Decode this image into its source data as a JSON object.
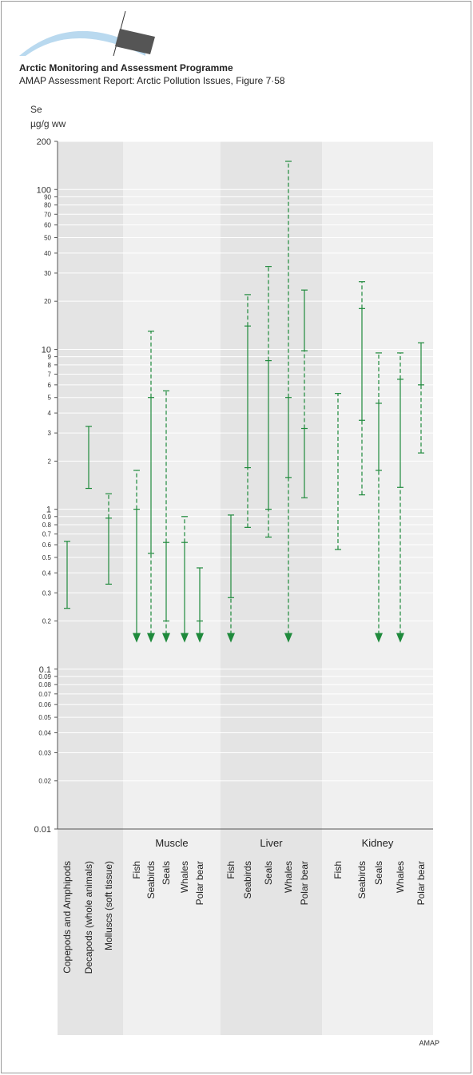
{
  "header": {
    "logo_text": "AMAP",
    "title": "Arctic Monitoring and Assessment Programme",
    "subtitle": "AMAP Assessment Report: Arctic Pollution Issues, Figure 7·58"
  },
  "footer": {
    "credit": "AMAP"
  },
  "colors": {
    "series": "#1f8a3c",
    "band_dark": "#e4e4e4",
    "band_light": "#f0f0f0",
    "grid": "#ffffff",
    "axis": "#555555"
  },
  "chart_data": {
    "type": "range",
    "ylabel_line1": "Se",
    "ylabel_line2": "µg/g ww",
    "yscale": "log",
    "ylim": [
      0.01,
      200
    ],
    "y_ticks": [
      {
        "v": 200,
        "label": "200",
        "major": true
      },
      {
        "v": 100,
        "label": "100",
        "major": true
      },
      {
        "v": 90,
        "label": "90"
      },
      {
        "v": 80,
        "label": "80"
      },
      {
        "v": 70,
        "label": "70"
      },
      {
        "v": 60,
        "label": "60"
      },
      {
        "v": 50,
        "label": "50"
      },
      {
        "v": 40,
        "label": "40"
      },
      {
        "v": 30,
        "label": "30"
      },
      {
        "v": 20,
        "label": "20"
      },
      {
        "v": 10,
        "label": "10",
        "major": true
      },
      {
        "v": 9,
        "label": "9"
      },
      {
        "v": 8,
        "label": "8"
      },
      {
        "v": 7,
        "label": "7"
      },
      {
        "v": 6,
        "label": "6"
      },
      {
        "v": 5,
        "label": "5"
      },
      {
        "v": 4,
        "label": "4"
      },
      {
        "v": 3,
        "label": "3"
      },
      {
        "v": 2,
        "label": "2"
      },
      {
        "v": 1,
        "label": "1",
        "major": true
      },
      {
        "v": 0.9,
        "label": "0.9"
      },
      {
        "v": 0.8,
        "label": "0.8"
      },
      {
        "v": 0.7,
        "label": "0.7"
      },
      {
        "v": 0.6,
        "label": "0.6"
      },
      {
        "v": 0.5,
        "label": "0.5"
      },
      {
        "v": 0.4,
        "label": "0.4"
      },
      {
        "v": 0.3,
        "label": "0.3"
      },
      {
        "v": 0.2,
        "label": "0.2"
      },
      {
        "v": 0.1,
        "label": "0.1",
        "major": true
      },
      {
        "v": 0.09,
        "label": "0.09"
      },
      {
        "v": 0.08,
        "label": "0.08"
      },
      {
        "v": 0.07,
        "label": "0.07"
      },
      {
        "v": 0.06,
        "label": "0.06"
      },
      {
        "v": 0.05,
        "label": "0.05"
      },
      {
        "v": 0.04,
        "label": "0.04"
      },
      {
        "v": 0.03,
        "label": "0.03"
      },
      {
        "v": 0.02,
        "label": "0.02"
      },
      {
        "v": 0.01,
        "label": "0.01",
        "major": true
      }
    ],
    "groups": [
      {
        "label": "",
        "dark": true,
        "categories": [
          {
            "name": "Copepods and Amphipods",
            "lines": [
              {
                "from": 0.24,
                "to": 0.63,
                "style": "solid"
              }
            ],
            "ticks": [
              0.24,
              0.63
            ],
            "arrow": false
          },
          {
            "name": "Decapods (whole animals)",
            "lines": [
              {
                "from": 1.35,
                "to": 3.3,
                "style": "solid"
              }
            ],
            "ticks": [
              1.35,
              3.3
            ],
            "arrow": false
          },
          {
            "name": "Molluscs (soft tissue)",
            "lines": [
              {
                "from": 0.34,
                "to": 0.88,
                "style": "solid"
              },
              {
                "from": 0.88,
                "to": 1.25,
                "style": "dashed"
              }
            ],
            "ticks": [
              0.34,
              0.88,
              1.25
            ],
            "arrow": false
          }
        ]
      },
      {
        "label": "Muscle",
        "dark": false,
        "categories": [
          {
            "name": "Fish",
            "lines": [
              {
                "from": 0.15,
                "to": 1.0,
                "style": "solid"
              },
              {
                "from": 1.0,
                "to": 1.75,
                "style": "dashed"
              }
            ],
            "ticks": [
              1.0,
              1.75
            ],
            "arrow": true
          },
          {
            "name": "Seabirds",
            "lines": [
              {
                "from": 0.15,
                "to": 0.53,
                "style": "dashed"
              },
              {
                "from": 0.53,
                "to": 5.0,
                "style": "solid"
              },
              {
                "from": 5.0,
                "to": 13.0,
                "style": "dashed"
              }
            ],
            "ticks": [
              0.53,
              5.0,
              13.0
            ],
            "arrow": true
          },
          {
            "name": "Seals",
            "lines": [
              {
                "from": 0.15,
                "to": 0.2,
                "style": "dashed"
              },
              {
                "from": 0.2,
                "to": 0.62,
                "style": "solid"
              },
              {
                "from": 0.62,
                "to": 5.5,
                "style": "dashed"
              }
            ],
            "ticks": [
              0.2,
              0.62,
              5.5
            ],
            "arrow": true
          },
          {
            "name": "Whales",
            "lines": [
              {
                "from": 0.15,
                "to": 0.62,
                "style": "solid"
              },
              {
                "from": 0.62,
                "to": 0.9,
                "style": "dashed"
              }
            ],
            "ticks": [
              0.62,
              0.9
            ],
            "arrow": true
          },
          {
            "name": "Polar bear",
            "lines": [
              {
                "from": 0.15,
                "to": 0.43,
                "style": "solid"
              }
            ],
            "ticks": [
              0.2,
              0.43
            ],
            "arrow": true
          }
        ]
      },
      {
        "label": "Liver",
        "dark": true,
        "categories": [
          {
            "name": "Fish",
            "lines": [
              {
                "from": 0.15,
                "to": 0.28,
                "style": "dashed"
              },
              {
                "from": 0.28,
                "to": 0.92,
                "style": "solid"
              }
            ],
            "ticks": [
              0.28,
              0.92
            ],
            "arrow": true
          },
          {
            "name": "Seabirds",
            "lines": [
              {
                "from": 0.77,
                "to": 1.82,
                "style": "dashed"
              },
              {
                "from": 1.82,
                "to": 14.0,
                "style": "solid"
              },
              {
                "from": 14.0,
                "to": 22.0,
                "style": "dashed"
              }
            ],
            "ticks": [
              0.77,
              1.82,
              14.0,
              22.0
            ],
            "arrow": false
          },
          {
            "name": "Seals",
            "lines": [
              {
                "from": 0.67,
                "to": 1.0,
                "style": "dashed"
              },
              {
                "from": 1.0,
                "to": 8.5,
                "style": "solid"
              },
              {
                "from": 8.5,
                "to": 33.0,
                "style": "dashed"
              }
            ],
            "ticks": [
              0.67,
              1.0,
              8.5,
              33.0
            ],
            "arrow": false
          },
          {
            "name": "Whales",
            "lines": [
              {
                "from": 0.15,
                "to": 1.58,
                "style": "dashed"
              },
              {
                "from": 1.58,
                "to": 5.0,
                "style": "solid"
              },
              {
                "from": 5.0,
                "to": 150.0,
                "style": "dashed"
              }
            ],
            "ticks": [
              1.58,
              5.0,
              150.0
            ],
            "arrow": true
          },
          {
            "name": "Polar bear",
            "lines": [
              {
                "from": 1.18,
                "to": 3.2,
                "style": "solid"
              },
              {
                "from": 3.2,
                "to": 9.8,
                "style": "dashed"
              },
              {
                "from": 9.8,
                "to": 23.5,
                "style": "solid"
              }
            ],
            "ticks": [
              1.18,
              3.2,
              9.8,
              23.5
            ],
            "arrow": false
          }
        ]
      },
      {
        "label": "Kidney",
        "dark": false,
        "categories": [
          {
            "name": "Fish",
            "lines": [
              {
                "from": 0.56,
                "to": 5.3,
                "style": "dashed"
              }
            ],
            "ticks": [
              0.56,
              5.3
            ],
            "arrow": false
          },
          {
            "name": "Seabirds",
            "lines": [
              {
                "from": 1.23,
                "to": 3.6,
                "style": "dashed"
              },
              {
                "from": 3.6,
                "to": 18.0,
                "style": "solid"
              },
              {
                "from": 18.0,
                "to": 26.5,
                "style": "dashed"
              }
            ],
            "ticks": [
              1.23,
              3.6,
              18.0,
              26.5
            ],
            "arrow": false
          },
          {
            "name": "Seals",
            "lines": [
              {
                "from": 0.15,
                "to": 1.75,
                "style": "dashed"
              },
              {
                "from": 1.75,
                "to": 4.6,
                "style": "solid"
              },
              {
                "from": 4.6,
                "to": 9.5,
                "style": "dashed"
              }
            ],
            "ticks": [
              1.75,
              4.6,
              9.5
            ],
            "arrow": true
          },
          {
            "name": "Whales",
            "lines": [
              {
                "from": 0.15,
                "to": 1.37,
                "style": "dashed"
              },
              {
                "from": 1.37,
                "to": 6.5,
                "style": "solid"
              },
              {
                "from": 6.5,
                "to": 9.5,
                "style": "dashed"
              }
            ],
            "ticks": [
              1.37,
              6.5,
              9.5
            ],
            "arrow": true
          },
          {
            "name": "Polar bear",
            "lines": [
              {
                "from": 2.25,
                "to": 6.0,
                "style": "dashed"
              },
              {
                "from": 6.0,
                "to": 11.0,
                "style": "solid"
              }
            ],
            "ticks": [
              2.25,
              6.0,
              11.0
            ],
            "arrow": false
          }
        ]
      }
    ]
  }
}
